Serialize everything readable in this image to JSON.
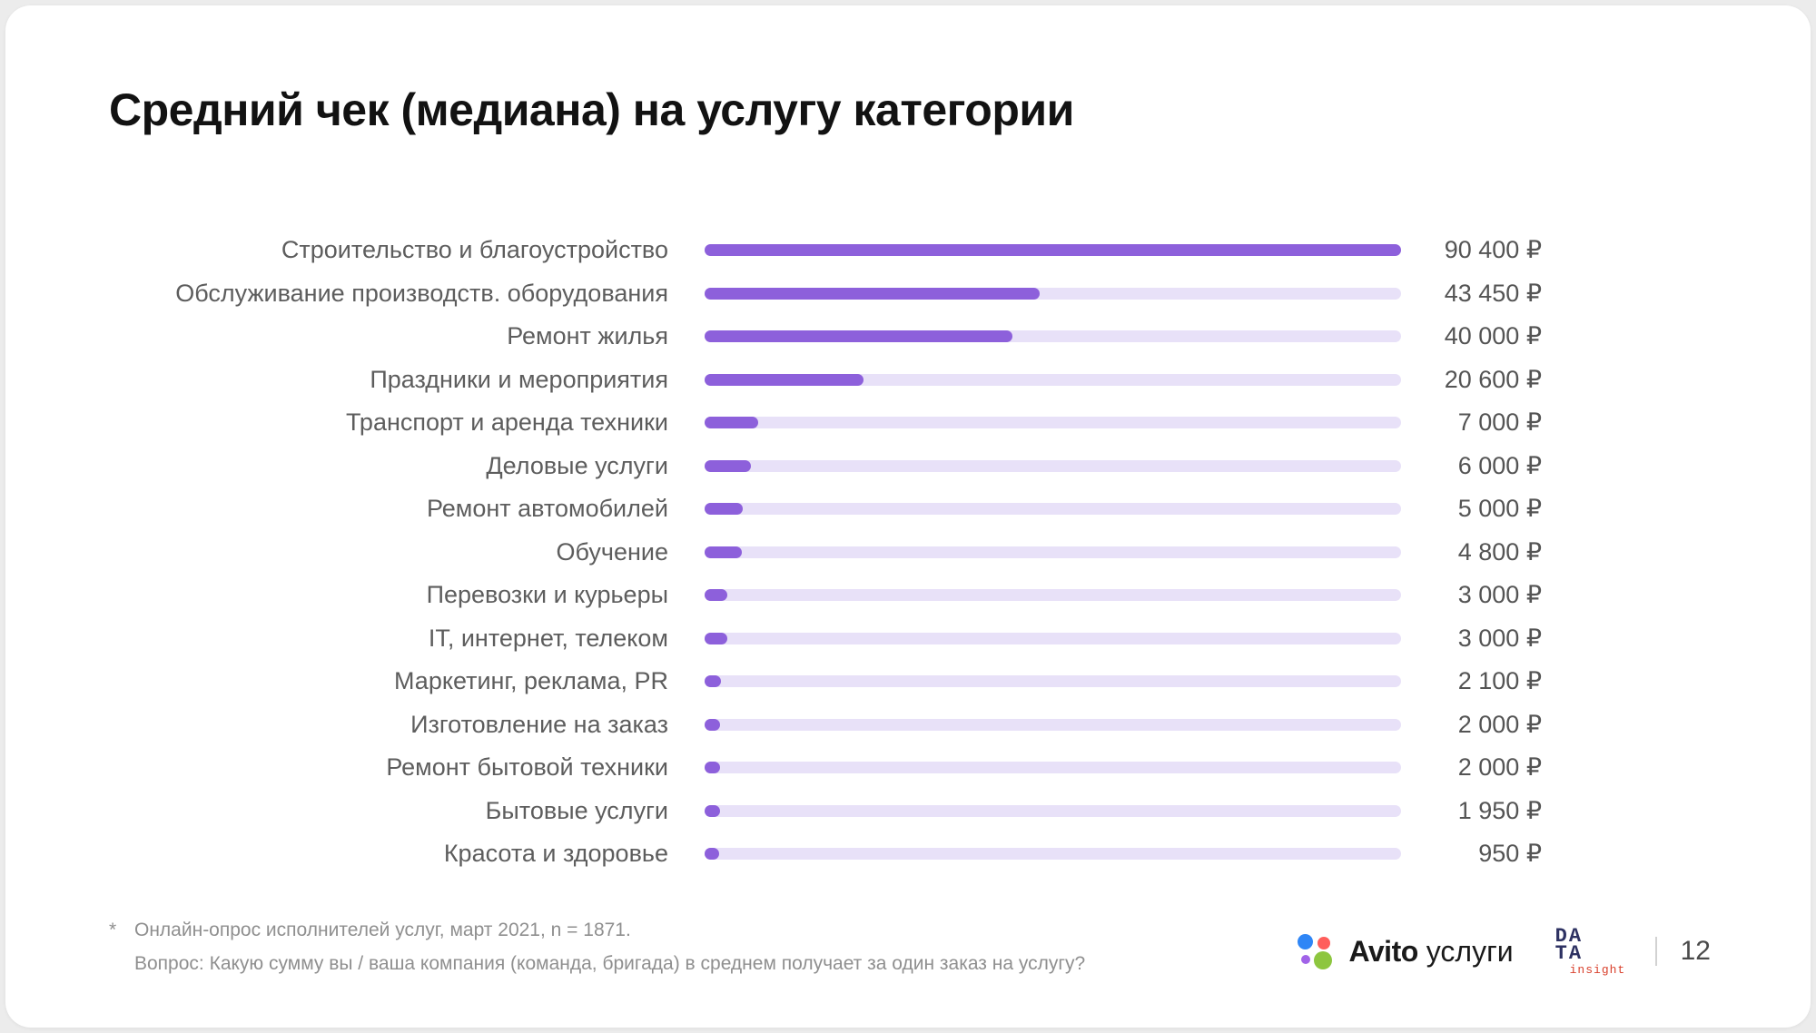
{
  "slide": {
    "title": "Средний чек (медиана) на услугу категории"
  },
  "chart_data": {
    "type": "bar",
    "orientation": "horizontal",
    "title": "Средний чек (медиана) на услугу категории",
    "unit": "₽",
    "max_value": 90400,
    "bar_color": "#8d60db",
    "track_color": "#e8e1f8",
    "grid": false,
    "legend": false,
    "categories": [
      "Строительство и благоустройство",
      "Обслуживание производств. оборудования",
      "Ремонт жилья",
      "Праздники и мероприятия",
      "Транспорт и аренда техники",
      "Деловые услуги",
      "Ремонт автомобилей",
      "Обучение",
      "Перевозки и курьеры",
      "IT, интернет, телеком",
      "Маркетинг, реклама, PR",
      "Изготовление на заказ",
      "Ремонт бытовой техники",
      "Бытовые услуги",
      "Красота и здоровье"
    ],
    "values": [
      90400,
      43450,
      40000,
      20600,
      7000,
      6000,
      5000,
      4800,
      3000,
      3000,
      2100,
      2000,
      2000,
      1950,
      950
    ],
    "value_labels": [
      "90 400 ₽",
      "43 450 ₽",
      "40 000 ₽",
      "20 600 ₽",
      "7 000 ₽",
      "6 000 ₽",
      "5 000 ₽",
      "4 800 ₽",
      "3 000 ₽",
      "3 000 ₽",
      "2 100 ₽",
      "2 000 ₽",
      "2 000 ₽",
      "1 950 ₽",
      "950 ₽"
    ]
  },
  "footnote": {
    "marker": "*",
    "line1": "Онлайн-опрос исполнителей услуг, март 2021, n = 1871.",
    "line2": "Вопрос: Какую сумму вы / ваша компания (команда, бригада) в среднем получает за один заказ на услугу?"
  },
  "footer": {
    "avito_brand": "Avito",
    "avito_suffix": "услуги",
    "data_insight_line1": "DA",
    "data_insight_line2": "TA",
    "data_insight_sub": "insight",
    "page": "12"
  },
  "colors": {
    "avito_blue": "#2f86f6",
    "avito_red": "#ff5e5b",
    "avito_purple": "#a163e8",
    "avito_green": "#8dc63f",
    "di_navy": "#2d3162",
    "di_red": "#d9402c"
  }
}
